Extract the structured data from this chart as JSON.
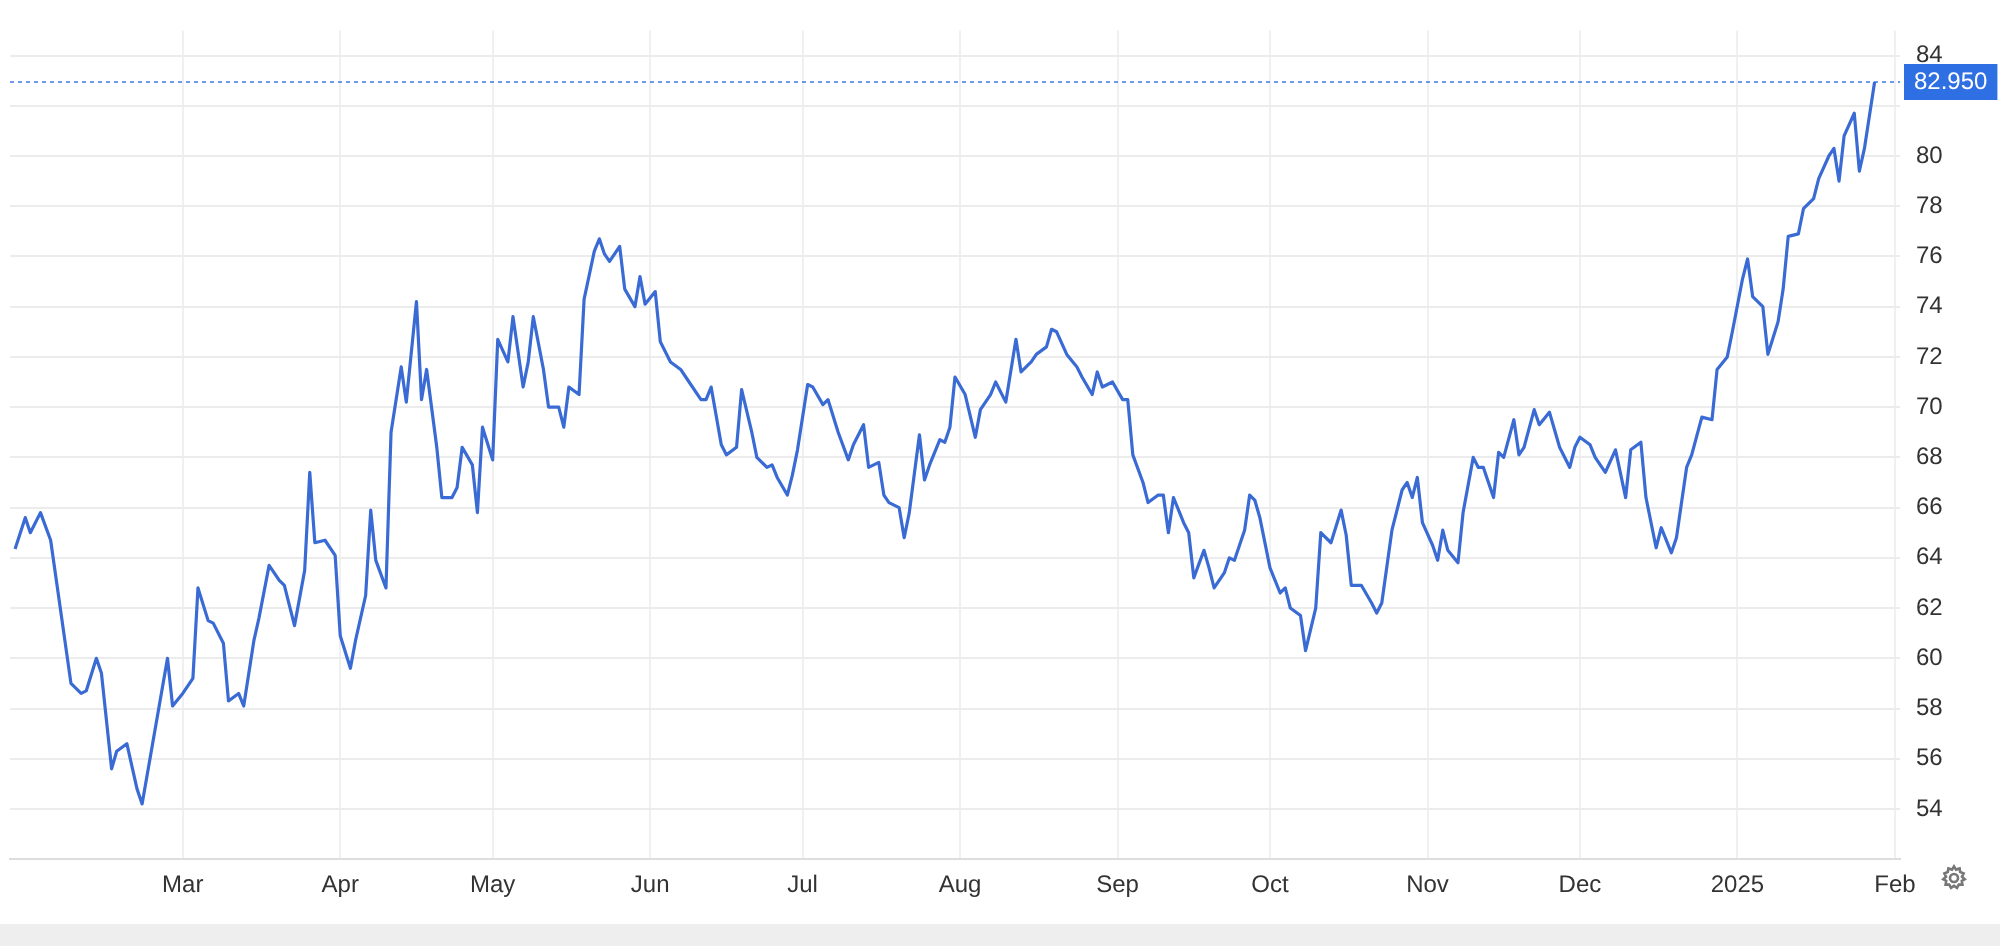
{
  "chart_data": {
    "type": "line",
    "x": [
      "2024-01-28",
      "2024-01-30",
      "2024-01-31",
      "2024-02-02",
      "2024-02-04",
      "2024-02-08",
      "2024-02-10",
      "2024-02-11",
      "2024-02-13",
      "2024-02-14",
      "2024-02-16",
      "2024-02-17",
      "2024-02-19",
      "2024-02-21",
      "2024-02-22",
      "2024-02-27",
      "2024-02-28",
      "2024-03-01",
      "2024-03-03",
      "2024-03-04",
      "2024-03-06",
      "2024-03-07",
      "2024-03-09",
      "2024-03-10",
      "2024-03-12",
      "2024-03-13",
      "2024-03-15",
      "2024-03-16",
      "2024-03-18",
      "2024-03-20",
      "2024-03-21",
      "2024-03-23",
      "2024-03-25",
      "2024-03-26",
      "2024-03-27",
      "2024-03-29",
      "2024-03-31",
      "2024-04-01",
      "2024-04-03",
      "2024-04-04",
      "2024-04-06",
      "2024-04-07",
      "2024-04-08",
      "2024-04-10",
      "2024-04-11",
      "2024-04-13",
      "2024-04-14",
      "2024-04-16",
      "2024-04-17",
      "2024-04-18",
      "2024-04-20",
      "2024-04-21",
      "2024-04-23",
      "2024-04-24",
      "2024-04-25",
      "2024-04-27",
      "2024-04-28",
      "2024-04-29",
      "2024-05-01",
      "2024-05-02",
      "2024-05-04",
      "2024-05-05",
      "2024-05-07",
      "2024-05-08",
      "2024-05-09",
      "2024-05-11",
      "2024-05-12",
      "2024-05-14",
      "2024-05-15",
      "2024-05-16",
      "2024-05-18",
      "2024-05-19",
      "2024-05-21",
      "2024-05-22",
      "2024-05-23",
      "2024-05-24",
      "2024-05-26",
      "2024-05-27",
      "2024-05-29",
      "2024-05-30",
      "2024-05-31",
      "2024-06-02",
      "2024-06-03",
      "2024-06-05",
      "2024-06-07",
      "2024-06-08",
      "2024-06-11",
      "2024-06-12",
      "2024-06-13",
      "2024-06-15",
      "2024-06-16",
      "2024-06-18",
      "2024-06-19",
      "2024-06-21",
      "2024-06-22",
      "2024-06-24",
      "2024-06-25",
      "2024-06-26",
      "2024-06-28",
      "2024-06-29",
      "2024-06-30",
      "2024-07-02",
      "2024-07-03",
      "2024-07-05",
      "2024-07-06",
      "2024-07-08",
      "2024-07-10",
      "2024-07-11",
      "2024-07-13",
      "2024-07-14",
      "2024-07-16",
      "2024-07-17",
      "2024-07-18",
      "2024-07-20",
      "2024-07-21",
      "2024-07-22",
      "2024-07-24",
      "2024-07-25",
      "2024-07-26",
      "2024-07-28",
      "2024-07-29",
      "2024-07-30",
      "2024-07-31",
      "2024-08-02",
      "2024-08-04",
      "2024-08-05",
      "2024-08-07",
      "2024-08-08",
      "2024-08-10",
      "2024-08-12",
      "2024-08-13",
      "2024-08-15",
      "2024-08-16",
      "2024-08-18",
      "2024-08-19",
      "2024-08-20",
      "2024-08-22",
      "2024-08-24",
      "2024-08-25",
      "2024-08-27",
      "2024-08-28",
      "2024-08-29",
      "2024-08-31",
      "2024-09-02",
      "2024-09-03",
      "2024-09-04",
      "2024-09-06",
      "2024-09-07",
      "2024-09-09",
      "2024-09-10",
      "2024-09-11",
      "2024-09-12",
      "2024-09-14",
      "2024-09-15",
      "2024-09-16",
      "2024-09-18",
      "2024-09-19",
      "2024-09-20",
      "2024-09-22",
      "2024-09-23",
      "2024-09-24",
      "2024-09-26",
      "2024-09-27",
      "2024-09-28",
      "2024-09-29",
      "2024-10-01",
      "2024-10-03",
      "2024-10-04",
      "2024-10-05",
      "2024-10-07",
      "2024-10-08",
      "2024-10-10",
      "2024-10-11",
      "2024-10-13",
      "2024-10-15",
      "2024-10-16",
      "2024-10-17",
      "2024-10-19",
      "2024-10-21",
      "2024-10-22",
      "2024-10-23",
      "2024-10-25",
      "2024-10-27",
      "2024-10-28",
      "2024-10-29",
      "2024-10-30",
      "2024-10-31",
      "2024-11-02",
      "2024-11-03",
      "2024-11-04",
      "2024-11-05",
      "2024-11-07",
      "2024-11-08",
      "2024-11-10",
      "2024-11-11",
      "2024-11-12",
      "2024-11-14",
      "2024-11-15",
      "2024-11-16",
      "2024-11-18",
      "2024-11-19",
      "2024-11-20",
      "2024-11-22",
      "2024-11-23",
      "2024-11-25",
      "2024-11-26",
      "2024-11-27",
      "2024-11-29",
      "2024-11-30",
      "2024-12-01",
      "2024-12-03",
      "2024-12-04",
      "2024-12-06",
      "2024-12-08",
      "2024-12-10",
      "2024-12-11",
      "2024-12-13",
      "2024-12-14",
      "2024-12-16",
      "2024-12-17",
      "2024-12-19",
      "2024-12-20",
      "2024-12-22",
      "2024-12-23",
      "2024-12-25",
      "2024-12-27",
      "2024-12-28",
      "2024-12-30",
      "2024-12-31",
      "2025-01-02",
      "2025-01-03",
      "2025-01-04",
      "2025-01-06",
      "2025-01-07",
      "2025-01-09",
      "2025-01-10",
      "2025-01-11",
      "2025-01-13",
      "2025-01-14",
      "2025-01-16",
      "2025-01-17",
      "2025-01-19",
      "2025-01-20",
      "2025-01-21",
      "2025-01-22",
      "2025-01-24",
      "2025-01-25",
      "2025-01-26",
      "2025-01-28"
    ],
    "series": [
      {
        "color": "#3a6bd4",
        "values": [
          64.35,
          65.6,
          65.0,
          65.8,
          64.7,
          59.0,
          58.6,
          58.7,
          60.0,
          59.4,
          55.6,
          56.3,
          56.6,
          54.8,
          54.2,
          60.0,
          58.1,
          58.6,
          59.2,
          62.8,
          61.5,
          61.4,
          60.6,
          58.3,
          58.6,
          58.1,
          60.7,
          61.6,
          63.7,
          63.1,
          62.9,
          61.3,
          63.5,
          67.4,
          64.6,
          64.7,
          64.1,
          60.9,
          59.6,
          60.7,
          62.5,
          65.9,
          63.9,
          62.8,
          69.0,
          71.6,
          70.2,
          74.2,
          70.3,
          71.5,
          68.4,
          66.4,
          66.4,
          66.8,
          68.4,
          67.7,
          65.8,
          69.2,
          67.9,
          72.7,
          71.8,
          73.6,
          70.8,
          71.8,
          73.6,
          71.5,
          70.0,
          70.0,
          69.2,
          70.8,
          70.5,
          74.3,
          76.2,
          76.7,
          76.1,
          75.8,
          76.4,
          74.7,
          74.0,
          75.2,
          74.1,
          74.6,
          72.6,
          71.8,
          71.5,
          71.2,
          70.3,
          70.3,
          70.8,
          68.5,
          68.1,
          68.4,
          70.7,
          69.0,
          68.0,
          67.6,
          67.7,
          67.2,
          66.5,
          67.3,
          68.3,
          70.9,
          70.8,
          70.1,
          70.3,
          69.0,
          67.9,
          68.5,
          69.3,
          67.6,
          67.8,
          66.5,
          66.2,
          66.0,
          64.8,
          65.8,
          68.9,
          67.1,
          67.7,
          68.7,
          68.6,
          69.2,
          71.2,
          70.5,
          68.8,
          69.9,
          70.5,
          71.0,
          70.2,
          72.7,
          71.4,
          71.8,
          72.1,
          72.4,
          73.1,
          73.0,
          72.1,
          71.6,
          71.2,
          70.5,
          71.4,
          70.8,
          71.0,
          70.3,
          70.3,
          68.1,
          67.0,
          66.2,
          66.5,
          66.5,
          65.0,
          66.4,
          65.4,
          65.0,
          63.2,
          64.3,
          63.6,
          62.8,
          63.4,
          64.0,
          63.9,
          65.1,
          66.5,
          66.3,
          65.6,
          63.6,
          62.6,
          62.8,
          62.0,
          61.7,
          60.3,
          62.0,
          65.0,
          64.6,
          65.9,
          64.9,
          62.9,
          62.9,
          62.2,
          61.8,
          62.2,
          65.1,
          66.7,
          67.0,
          66.4,
          67.2,
          65.4,
          64.5,
          63.9,
          65.1,
          64.3,
          63.8,
          65.8,
          68.0,
          67.6,
          67.6,
          66.4,
          68.2,
          68.0,
          69.5,
          68.1,
          68.4,
          69.9,
          69.3,
          69.8,
          69.1,
          68.4,
          67.6,
          68.4,
          68.8,
          68.5,
          68.0,
          67.4,
          68.3,
          66.4,
          68.3,
          68.6,
          66.4,
          64.4,
          65.2,
          64.2,
          64.8,
          67.6,
          68.1,
          69.6,
          69.5,
          71.5,
          72.0,
          73.0,
          75.1,
          75.9,
          74.4,
          74.0,
          72.1,
          73.4,
          74.7,
          76.8,
          76.9,
          77.9,
          78.3,
          79.1,
          80.0,
          80.3,
          79.0,
          80.8,
          81.7,
          79.4,
          80.3,
          82.95
        ]
      }
    ],
    "xlim": [
      "2024-01-27",
      "2025-02-02"
    ],
    "xticks": [
      {
        "value": "2024-03-01",
        "label": "Mar"
      },
      {
        "value": "2024-04-01",
        "label": "Apr"
      },
      {
        "value": "2024-05-01",
        "label": "May"
      },
      {
        "value": "2024-06-01",
        "label": "Jun"
      },
      {
        "value": "2024-07-01",
        "label": "Jul"
      },
      {
        "value": "2024-08-01",
        "label": "Aug"
      },
      {
        "value": "2024-09-01",
        "label": "Sep"
      },
      {
        "value": "2024-10-01",
        "label": "Oct"
      },
      {
        "value": "2024-11-01",
        "label": "Nov"
      },
      {
        "value": "2024-12-01",
        "label": "Dec"
      },
      {
        "value": "2025-01-01",
        "label": "2025"
      },
      {
        "value": "2025-02-01",
        "label": "Feb"
      }
    ],
    "ylim": [
      52,
      85
    ],
    "yticks": [
      54,
      56,
      58,
      60,
      62,
      64,
      66,
      68,
      70,
      72,
      74,
      76,
      78,
      80,
      {
        "value": 82,
        "label": null
      },
      84
    ],
    "ref_lines": [
      {
        "axis": "y",
        "value": 82.95,
        "label": "82.950",
        "color": "#2f6fe4",
        "line_style": "dotted"
      }
    ],
    "grid": true,
    "legend": false,
    "marker": "none",
    "line_style": "solid"
  }
}
